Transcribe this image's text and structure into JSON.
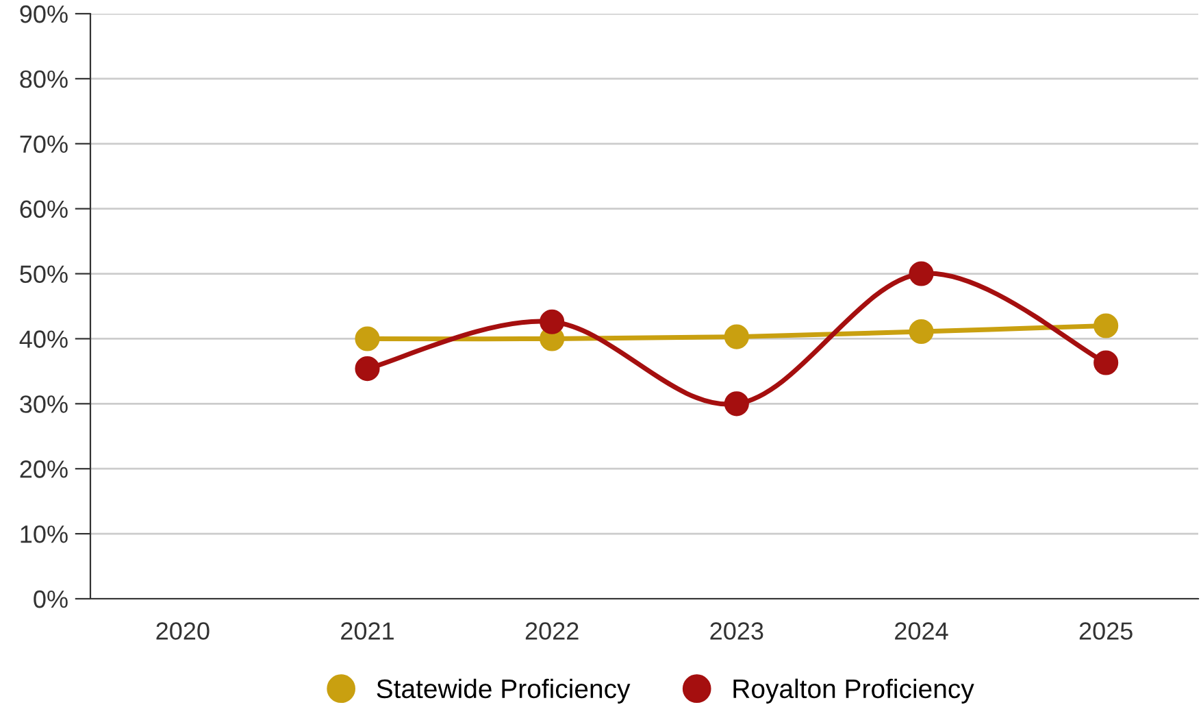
{
  "chart_data": {
    "type": "line",
    "categories": [
      "2020",
      "2021",
      "2022",
      "2023",
      "2024",
      "2025"
    ],
    "series": [
      {
        "name": "Statewide Proficiency",
        "color": "#c9a010",
        "values": [
          null,
          40.0,
          40.0,
          40.3,
          41.1,
          42.0
        ]
      },
      {
        "name": "Royalton Proficiency",
        "color": "#a50f0f",
        "values": [
          null,
          35.4,
          42.6,
          30.0,
          50.0,
          36.3
        ]
      }
    ],
    "ylim": [
      0,
      90
    ],
    "yticks": [
      {
        "value": 0,
        "label": "0%"
      },
      {
        "value": 10,
        "label": "10%"
      },
      {
        "value": 20,
        "label": "20%"
      },
      {
        "value": 30,
        "label": "30%"
      },
      {
        "value": 40,
        "label": "40%"
      },
      {
        "value": 50,
        "label": "50%"
      },
      {
        "value": 60,
        "label": "60%"
      },
      {
        "value": 70,
        "label": "70%"
      },
      {
        "value": 80,
        "label": "80%"
      },
      {
        "value": 90,
        "label": "90%"
      }
    ],
    "grid": "y",
    "legend": "bottom",
    "marker": "circle",
    "line_style": "solid"
  }
}
